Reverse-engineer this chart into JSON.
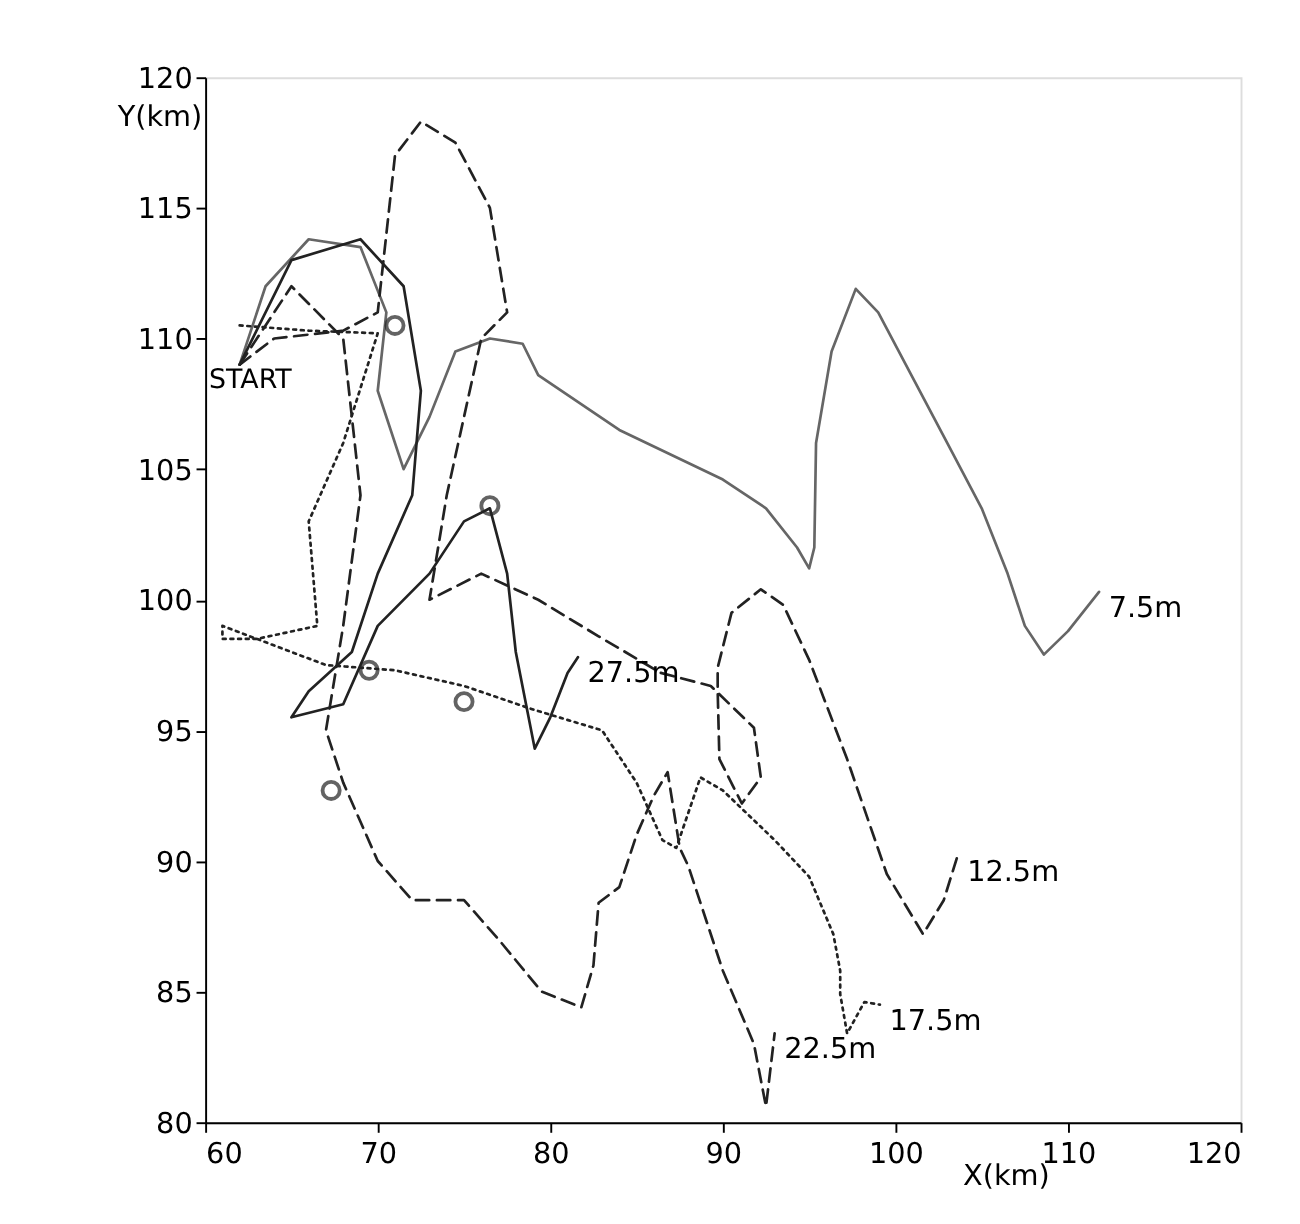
{
  "chart_data": {
    "type": "line",
    "xlabel": "X(km)",
    "ylabel": "Y(km)",
    "xlim": [
      60,
      120
    ],
    "ylim": [
      80,
      120
    ],
    "xticks": [
      60,
      70,
      80,
      90,
      100,
      110,
      120
    ],
    "yticks": [
      80,
      85,
      90,
      95,
      100,
      105,
      110,
      115,
      120
    ],
    "grid": false,
    "annotations": [
      "START"
    ],
    "series": [
      {
        "name": "7.5m",
        "color": "#666666",
        "line_style": "solid",
        "marker": "none",
        "x": [
          62,
          63.5,
          66,
          69,
          70.5,
          70,
          71.5,
          73,
          74.5,
          76.5,
          78.4,
          79.3,
          84,
          90,
          92.5,
          94.3,
          95.0,
          95.3,
          95.4,
          96.3,
          97.7,
          99,
          101,
          103,
          105,
          106.5,
          107.5,
          108.6,
          110,
          111.8
        ],
        "values": [
          109,
          112,
          113.8,
          113.5,
          111,
          108,
          105,
          107,
          109.5,
          110,
          109.8,
          108.6,
          106.5,
          104.6,
          103.5,
          102,
          101.2,
          102,
          106,
          109.5,
          111.9,
          111,
          108.5,
          106,
          103.5,
          101,
          99,
          97.9,
          98.8,
          100.3
        ]
      },
      {
        "name": "12.5m",
        "color": "#222222",
        "line_style": "dashed",
        "marker": "none",
        "x": [
          62,
          64,
          68,
          70,
          71,
          72.5,
          74.5,
          76.5,
          77.5,
          76,
          75,
          74,
          73,
          76,
          79.3,
          82.8,
          86.4,
          89.3,
          91.8,
          92.2,
          91.1,
          89.8,
          89.7,
          89.7,
          90.5,
          92.2,
          93.5,
          95,
          97.2,
          99.5,
          101.6,
          102.8,
          103.6
        ],
        "values": [
          109,
          110,
          110.3,
          111,
          117,
          118.3,
          117.5,
          115,
          111,
          110,
          107,
          104,
          100,
          101,
          100,
          98.6,
          97.2,
          96.7,
          95.1,
          93.2,
          92.2,
          93.9,
          96.5,
          97.4,
          99.5,
          100.4,
          99.8,
          97.7,
          93.9,
          89.5,
          87.2,
          88.5,
          90.2
        ]
      },
      {
        "name": "17.5m",
        "color": "#222222",
        "line_style": "dotted",
        "marker": "none",
        "x": [
          62,
          66,
          70,
          68,
          66,
          66.5,
          63,
          61,
          61,
          67,
          71,
          75,
          79,
          83,
          85,
          86.5,
          87.3,
          88.7,
          90,
          93,
          95,
          96.4,
          96.8,
          96.8,
          97.2,
          98.2,
          99.1
        ],
        "values": [
          110.5,
          110.3,
          110.2,
          106,
          103,
          99,
          98.5,
          98.5,
          99,
          97.5,
          97.3,
          96.7,
          95.8,
          95,
          93,
          90.8,
          90.5,
          93.2,
          92.7,
          90.8,
          89.4,
          87.2,
          85.8,
          84.9,
          83.4,
          84.6,
          84.5
        ]
      },
      {
        "name": "22.5m",
        "color": "#222222",
        "line_style": "dashed",
        "marker": "none",
        "x": [
          62,
          65,
          68,
          69,
          68,
          67,
          68,
          70,
          72,
          75,
          77,
          79.5,
          81.8,
          82.5,
          82.8,
          84,
          85,
          86,
          86.8,
          87.5,
          88,
          90,
          91.8,
          92.5,
          93
        ],
        "values": [
          109,
          112,
          110,
          104,
          99,
          95,
          93,
          90,
          88.5,
          88.5,
          87,
          85,
          84.4,
          86,
          88.4,
          89,
          91,
          92.5,
          93.4,
          90.5,
          89.8,
          85.8,
          83,
          80.6,
          83.4
        ]
      },
      {
        "name": "27.5m",
        "color": "#222222",
        "line_style": "solid",
        "marker": "none",
        "x": [
          62,
          65,
          69,
          71.5,
          72.5,
          72,
          70,
          68.5,
          66,
          65,
          68,
          70,
          73,
          75,
          76.5,
          77.5,
          78,
          79.1,
          80,
          81,
          81.6
        ],
        "values": [
          109,
          113,
          113.8,
          112,
          108,
          104,
          101,
          98,
          96.5,
          95.5,
          96,
          99,
          101,
          103,
          103.5,
          101,
          98,
          94.3,
          95.5,
          97.2,
          97.8
        ]
      },
      {
        "type": "scatter",
        "color": "#222222",
        "marker": "circle",
        "x": [
          71,
          76.5,
          69.5,
          75,
          67.3
        ],
        "values": [
          110.5,
          103.6,
          97.3,
          96.1,
          92.7
        ]
      }
    ]
  }
}
